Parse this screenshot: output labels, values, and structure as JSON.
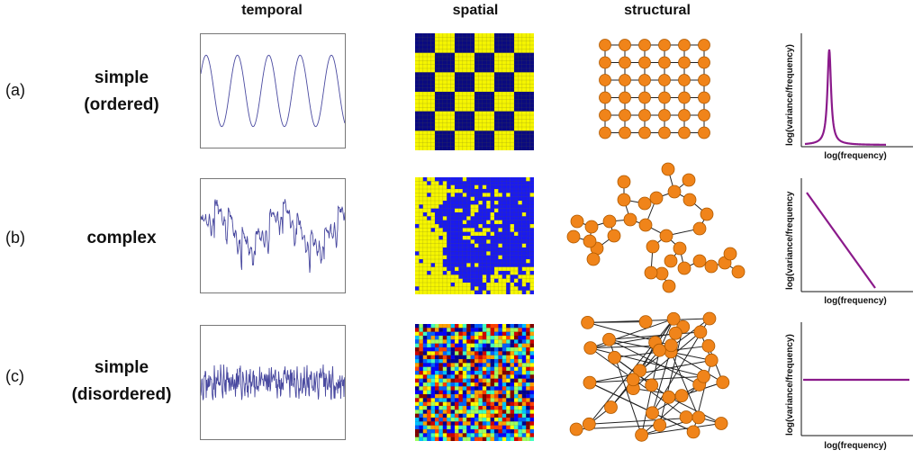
{
  "columns": {
    "temporal": "temporal",
    "spatial": "spatial",
    "structural": "structural"
  },
  "rows": [
    {
      "letter": "(a)",
      "label_line1": "simple",
      "label_line2": "(ordered)"
    },
    {
      "letter": "(b)",
      "label_line1": "complex",
      "label_line2": ""
    },
    {
      "letter": "(c)",
      "label_line1": "simple",
      "label_line2": "(disordered)"
    }
  ],
  "spectrum": {
    "xlabel": "log(frequency)",
    "ylabel_a": "log(variance/frequency)",
    "ylabel_b": "log(variance/frequency",
    "ylabel_c": "log(variance/frequency)",
    "line_color": "#8b1a8b"
  },
  "colors": {
    "node": "#f0841a",
    "node_stroke": "#b05a00",
    "checker_dark": "#0a0a80",
    "checker_light": "#f5f500",
    "complex_blue": "#1a1af0",
    "signal": "#4a4aa0"
  }
}
